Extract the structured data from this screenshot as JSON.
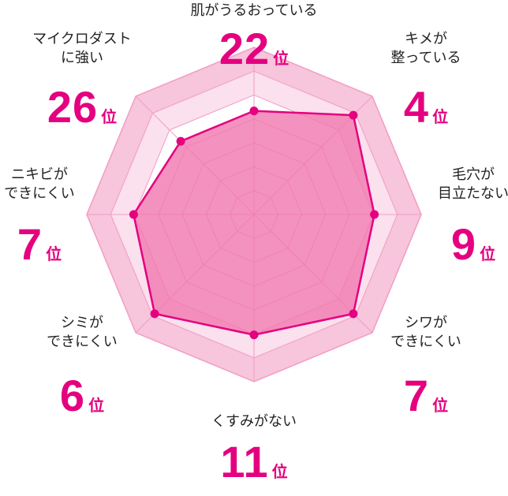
{
  "chart_data": {
    "type": "radar",
    "axes": [
      {
        "label": "肌がうるおっている",
        "rank": "22",
        "unit": "位",
        "value": 0.62
      },
      {
        "label": "キメが\n整っている",
        "rank": "4",
        "unit": "位",
        "value": 0.84
      },
      {
        "label": "毛穴が\n目立たない",
        "rank": "9",
        "unit": "位",
        "value": 0.72
      },
      {
        "label": "シワが\nできにくい",
        "rank": "7",
        "unit": "位",
        "value": 0.84
      },
      {
        "label": "くすみがない",
        "rank": "11",
        "unit": "位",
        "value": 0.72
      },
      {
        "label": "シミが\nできにくい",
        "rank": "6",
        "unit": "位",
        "value": 0.84
      },
      {
        "label": "ニキビが\nできにくい",
        "rank": "7",
        "unit": "位",
        "value": 0.72
      },
      {
        "label": "マイクロダスト\nに強い",
        "rank": "26",
        "unit": "位",
        "value": 0.62
      }
    ],
    "rings": 7,
    "range": [
      0,
      1
    ],
    "grid": true,
    "colors": {
      "outer_band": "#f7c5dc",
      "inner_band": "#fbe0ed",
      "grid_line": "#f29cc4",
      "area_fill": "#f07ab0",
      "series_line": "#e4007f",
      "rank_text": "#e4007f"
    }
  }
}
